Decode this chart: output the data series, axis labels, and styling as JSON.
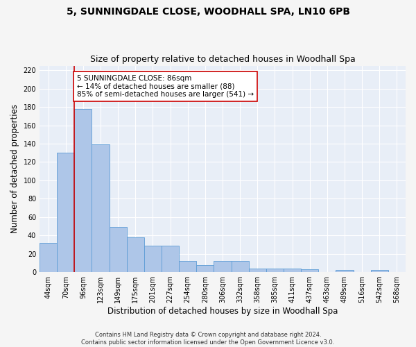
{
  "title1": "5, SUNNINGDALE CLOSE, WOODHALL SPA, LN10 6PB",
  "title2": "Size of property relative to detached houses in Woodhall Spa",
  "xlabel": "Distribution of detached houses by size in Woodhall Spa",
  "ylabel": "Number of detached properties",
  "footnote": "Contains HM Land Registry data © Crown copyright and database right 2024.\nContains public sector information licensed under the Open Government Licence v3.0.",
  "bin_labels": [
    "44sqm",
    "70sqm",
    "96sqm",
    "123sqm",
    "149sqm",
    "175sqm",
    "201sqm",
    "227sqm",
    "254sqm",
    "280sqm",
    "306sqm",
    "332sqm",
    "358sqm",
    "385sqm",
    "411sqm",
    "437sqm",
    "463sqm",
    "489sqm",
    "516sqm",
    "542sqm",
    "568sqm"
  ],
  "bar_heights": [
    32,
    130,
    178,
    139,
    49,
    38,
    29,
    29,
    12,
    8,
    12,
    12,
    4,
    4,
    4,
    3,
    0,
    2,
    0,
    2,
    0
  ],
  "bar_color": "#aec6e8",
  "bar_edge_color": "#5b9bd5",
  "vline_x": 1.5,
  "vline_color": "#cc0000",
  "annotation_text": "5 SUNNINGDALE CLOSE: 86sqm\n← 14% of detached houses are smaller (88)\n85% of semi-detached houses are larger (541) →",
  "annotation_box_color": "#ffffff",
  "annotation_box_edge": "#cc0000",
  "ylim": [
    0,
    225
  ],
  "yticks": [
    0,
    20,
    40,
    60,
    80,
    100,
    120,
    140,
    160,
    180,
    200,
    220
  ],
  "background_color": "#e8eef7",
  "grid_color": "#ffffff",
  "fig_background": "#f5f5f5",
  "title1_fontsize": 10,
  "title2_fontsize": 9,
  "xlabel_fontsize": 8.5,
  "ylabel_fontsize": 8.5,
  "tick_fontsize": 7,
  "annotation_fontsize": 7.5,
  "footnote_fontsize": 6
}
